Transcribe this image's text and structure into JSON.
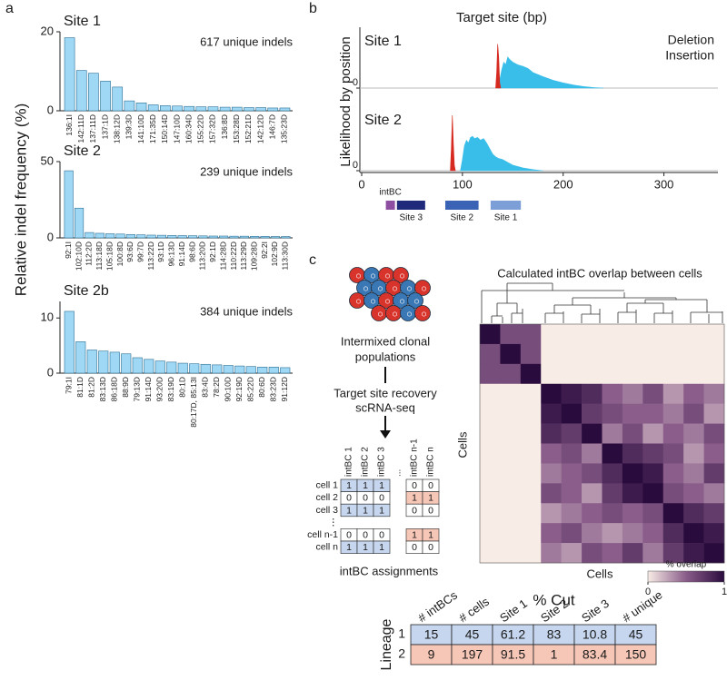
{
  "figure": {
    "panel_labels": [
      "a",
      "b",
      "c"
    ],
    "panel_a_ylabel": "Relative indel frequency (%)"
  },
  "chart_data": [
    {
      "type": "bar",
      "title": "Site 1",
      "annotation": "617 unique indels",
      "color": "#9fd8f4",
      "edgecolor": "#2c6e94",
      "categories": [
        "136:1I",
        "142:11D",
        "137:11D",
        "137:1D",
        "138:12D",
        "139:3D",
        "141:10D",
        "171:35D",
        "150:14D",
        "147:10D",
        "160:34D",
        "155:22D",
        "157:32D",
        "136:8D",
        "153:28D",
        "152:21D",
        "142:12D",
        "146:7D",
        "135:23D"
      ],
      "values": [
        18.5,
        10.2,
        9.5,
        7.5,
        6.0,
        2.5,
        2.0,
        1.5,
        1.3,
        1.2,
        1.1,
        1.0,
        1.0,
        0.9,
        0.9,
        0.8,
        0.8,
        0.7,
        0.7
      ],
      "ylim": [
        0,
        20
      ],
      "yticks": [
        0,
        20
      ]
    },
    {
      "type": "bar",
      "title": "Site 2",
      "annotation": "239 unique indels",
      "color": "#9fd8f4",
      "edgecolor": "#2c6e94",
      "categories": [
        "92:1I",
        "102:10D",
        "112:2D",
        "113:18D",
        "105:18D",
        "100:8D",
        "93:6D",
        "99:7D",
        "113:22D",
        "93:1D",
        "96:13D",
        "91:14D",
        "98:6D",
        "113:20D",
        "92:1D",
        "114:28D",
        "110:22D",
        "113:29D",
        "109:28D",
        "92:2I",
        "102:9D",
        "113:30D"
      ],
      "values": [
        44,
        19.5,
        3.5,
        3.0,
        2.7,
        2.5,
        2.2,
        2.0,
        1.8,
        1.7,
        1.6,
        1.5,
        1.4,
        1.3,
        1.2,
        1.2,
        1.1,
        1.1,
        1.0,
        1.0,
        0.9,
        0.9
      ],
      "ylim": [
        0,
        50
      ],
      "yticks": [
        0,
        50
      ]
    },
    {
      "type": "bar",
      "title": "Site 2b",
      "annotation": "384 unique indels",
      "color": "#9fd8f4",
      "edgecolor": "#2c6e94",
      "categories": [
        "79:1I",
        "81:1D",
        "81:2D",
        "83:13D",
        "86:18D",
        "88:9D",
        "79:13D",
        "91:14D",
        "93:20D",
        "83:19D",
        "80:1D",
        "80:17D, 85:13I",
        "83:4D",
        "78:2D",
        "90:10D",
        "92:19D",
        "85:22D",
        "80:6D",
        "83:23D",
        "91:12D"
      ],
      "values": [
        11.2,
        5.7,
        4.2,
        4.0,
        3.8,
        3.5,
        2.8,
        2.5,
        2.2,
        2.0,
        1.8,
        1.7,
        1.6,
        1.5,
        1.4,
        1.3,
        1.2,
        1.1,
        1.1,
        1.0
      ],
      "ylim": [
        0,
        13
      ],
      "yticks": [
        0,
        10
      ]
    },
    {
      "type": "area",
      "title": "Target site (bp)",
      "ylabel": "Likelihood by position",
      "legend": "top-right",
      "xlim": [
        0,
        350
      ],
      "xticks": [
        0,
        100,
        200,
        300
      ],
      "subplots": [
        {
          "title": "Site 1",
          "ylim": [
            0,
            1
          ],
          "yticks": [
            0
          ],
          "series": [
            {
              "name": "Deletion",
              "color": "#39bde9",
              "x": [
                135,
                137,
                139,
                141,
                143,
                145,
                147,
                150,
                155,
                160,
                165,
                170,
                180,
                190,
                200,
                210,
                220,
                230,
                240
              ],
              "values": [
                0,
                0.15,
                0.35,
                0.5,
                0.45,
                0.6,
                0.55,
                0.5,
                0.45,
                0.42,
                0.38,
                0.3,
                0.22,
                0.15,
                0.1,
                0.06,
                0.03,
                0.01,
                0
              ]
            },
            {
              "name": "Insertion",
              "color": "#d62a20",
              "x": [
                133,
                134,
                135,
                136,
                137,
                138
              ],
              "values": [
                0,
                0.3,
                0.85,
                0.6,
                0.1,
                0
              ]
            }
          ]
        },
        {
          "title": "Site 2",
          "ylim": [
            0,
            1
          ],
          "yticks": [
            0
          ],
          "series": [
            {
              "name": "Deletion",
              "color": "#39bde9",
              "x": [
                98,
                100,
                102,
                104,
                106,
                108,
                110,
                112,
                115,
                118,
                121,
                124,
                127,
                130,
                133,
                136,
                140,
                145,
                150,
                160,
                170,
                180
              ],
              "values": [
                0,
                0.2,
                0.45,
                0.55,
                0.5,
                0.6,
                0.62,
                0.58,
                0.6,
                0.55,
                0.58,
                0.5,
                0.4,
                0.3,
                0.25,
                0.22,
                0.2,
                0.15,
                0.1,
                0.05,
                0.02,
                0
              ]
            },
            {
              "name": "Insertion",
              "color": "#d62a20",
              "x": [
                88,
                89,
                90,
                91,
                92,
                93
              ],
              "values": [
                0,
                0.4,
                1.0,
                0.5,
                0.1,
                0
              ]
            }
          ]
        }
      ],
      "regions": [
        {
          "name": "intBC",
          "start": 24,
          "end": 33,
          "color": "#8e4fa3"
        },
        {
          "name": "Site 3",
          "start": 35,
          "end": 63,
          "color": "#1f2a7a"
        },
        {
          "name": "Site 2",
          "start": 83,
          "end": 116,
          "color": "#3b63b5"
        },
        {
          "name": "Site 1",
          "start": 128,
          "end": 158,
          "color": "#7b9fd6"
        }
      ]
    },
    {
      "type": "heatmap",
      "title": "Calculated intBC overlap between cells",
      "xlabel": "Cells",
      "ylabel": "Cells",
      "colorscale": [
        "#f8ece6",
        "#8a5d8a",
        "#2a0b3d"
      ],
      "colorbar_label": "% overlap",
      "clim": [
        0,
        1
      ],
      "cticks": [
        0,
        1
      ],
      "values": [
        [
          1,
          0.6,
          0.6,
          0,
          0,
          0,
          0,
          0,
          0,
          0,
          0,
          0
        ],
        [
          0.6,
          1,
          0.6,
          0,
          0,
          0,
          0,
          0,
          0,
          0,
          0,
          0
        ],
        [
          0.6,
          0.6,
          1,
          0,
          0,
          0,
          0,
          0,
          0,
          0,
          0,
          0
        ],
        [
          0,
          0,
          0,
          1,
          0.9,
          0.8,
          0.5,
          0.4,
          0.6,
          0.3,
          0.5,
          0.4
        ],
        [
          0,
          0,
          0,
          0.9,
          1,
          0.7,
          0.6,
          0.5,
          0.5,
          0.4,
          0.6,
          0.3
        ],
        [
          0,
          0,
          0,
          0.8,
          0.7,
          1,
          0.4,
          0.6,
          0.3,
          0.5,
          0.4,
          0.6
        ],
        [
          0,
          0,
          0,
          0.5,
          0.6,
          0.4,
          1,
          0.8,
          0.7,
          0.6,
          0.3,
          0.5
        ],
        [
          0,
          0,
          0,
          0.4,
          0.5,
          0.6,
          0.8,
          1,
          0.9,
          0.5,
          0.4,
          0.7
        ],
        [
          0,
          0,
          0,
          0.6,
          0.5,
          0.3,
          0.7,
          0.9,
          1,
          0.6,
          0.5,
          0.4
        ],
        [
          0,
          0,
          0,
          0.3,
          0.4,
          0.5,
          0.6,
          0.5,
          0.6,
          1,
          0.8,
          0.7
        ],
        [
          0,
          0,
          0,
          0.5,
          0.6,
          0.4,
          0.3,
          0.4,
          0.5,
          0.8,
          1,
          0.9
        ],
        [
          0,
          0,
          0,
          0.4,
          0.3,
          0.6,
          0.5,
          0.7,
          0.4,
          0.7,
          0.9,
          1
        ]
      ]
    }
  ],
  "schematic": {
    "population_label": [
      "Intermixed clonal",
      "populations"
    ],
    "method_label": [
      "Target site recovery",
      "scRNA-seq"
    ],
    "assignment_table": {
      "columns": [
        "intBC 1",
        "intBC 2",
        "intBC 3",
        "...",
        "intBC n-1",
        "intBC n"
      ],
      "column_colors": [
        "#c6d6ee",
        "#c6d6ee",
        "#c6d6ee",
        null,
        "#f6c7b7",
        "#f6c7b7"
      ],
      "rows": [
        {
          "label": "cell 1",
          "cells": [
            1,
            1,
            1,
            null,
            0,
            0
          ]
        },
        {
          "label": "cell 2",
          "cells": [
            0,
            0,
            0,
            null,
            1,
            1
          ]
        },
        {
          "label": "cell 3",
          "cells": [
            1,
            1,
            1,
            null,
            0,
            0
          ]
        },
        {
          "label": "⋮"
        },
        {
          "label": "cell n-1",
          "cells": [
            0,
            0,
            0,
            null,
            1,
            1
          ]
        },
        {
          "label": "cell n",
          "cells": [
            1,
            1,
            1,
            null,
            0,
            0
          ]
        }
      ],
      "caption": "intBC assignments"
    }
  },
  "lineage_table": {
    "title": "% Cut",
    "row_header": "Lineage",
    "columns": [
      "# intBCs",
      "# cells",
      "Site 1",
      "Site 2",
      "Site 3",
      "# unique"
    ],
    "rows": [
      {
        "label": 1,
        "color": "#c6d6ee",
        "cells": [
          15,
          45,
          61.2,
          83,
          10.8,
          45
        ]
      },
      {
        "label": 2,
        "color": "#f6c7b7",
        "cells": [
          9,
          197,
          91.5,
          1,
          83.4,
          150
        ]
      }
    ]
  }
}
